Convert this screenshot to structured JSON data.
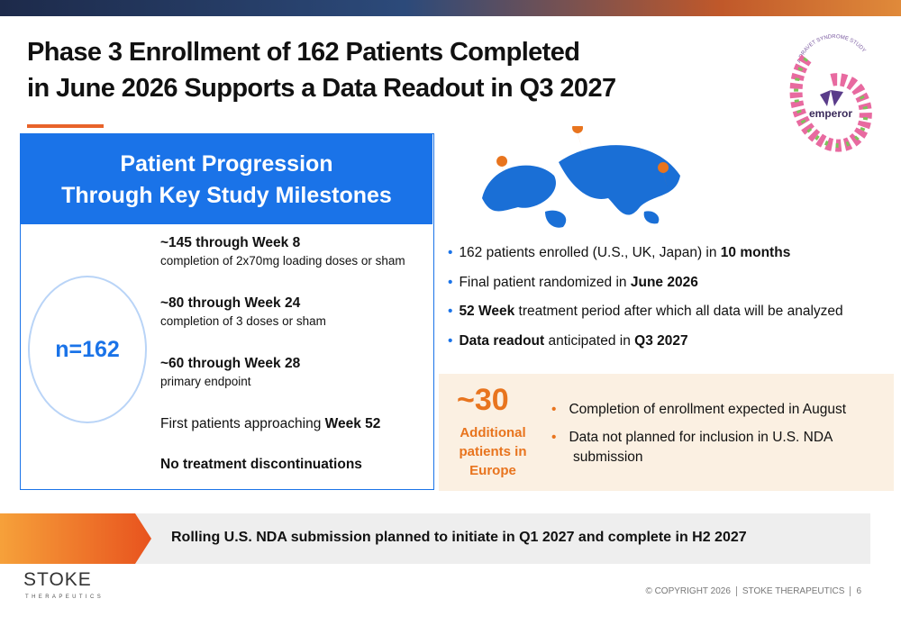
{
  "header": {
    "title_lines": [
      "Phase 3 Enrollment of 162 Patients Completed",
      "in June 2026 Supports a Data Readout in Q3 2027"
    ]
  },
  "badge": {
    "arc_text": "A DRAVET SYNDROME STUDY",
    "name": "emperor"
  },
  "progression": {
    "title_lines": [
      "Patient Progression",
      "Through Key Study Milestones"
    ],
    "total": "n=162",
    "milestones": [
      {
        "heading": [
          {
            "text": "~145 through Week 8",
            "bold": true
          }
        ],
        "detail": "completion of 2x70mg loading doses or sham"
      },
      {
        "heading": [
          {
            "text": "~80 through Week 24",
            "bold": true
          }
        ],
        "detail": "completion of 3 doses or sham"
      },
      {
        "heading": [
          {
            "text": "~60 through Week 28",
            "bold": true
          }
        ],
        "detail": "primary endpoint"
      },
      {
        "heading": [
          {
            "text": "First patients approaching ",
            "bold": false
          },
          {
            "text": "Week 52",
            "bold": true
          }
        ]
      },
      {
        "heading": [
          {
            "text": "No treatment discontinuations",
            "bold": true
          }
        ]
      }
    ]
  },
  "highlights": [
    [
      {
        "text": "162 patients enrolled (U.S., UK, Japan) in ",
        "bold": false
      },
      {
        "text": "10 months",
        "bold": true
      }
    ],
    [
      {
        "text": "Final patient randomized in ",
        "bold": false
      },
      {
        "text": "June 2026",
        "bold": true
      }
    ],
    [
      {
        "text": "52 Week",
        "bold": true
      },
      {
        "text": " treatment period after which all data will be analyzed",
        "bold": false
      }
    ],
    [
      {
        "text": "Data readout",
        "bold": true
      },
      {
        "text": " anticipated in ",
        "bold": false
      },
      {
        "text": "Q3 2027",
        "bold": true
      }
    ]
  ],
  "europe": {
    "count": "~30",
    "label_lines": [
      "Additional",
      "patients in",
      "Europe"
    ],
    "bullets": [
      "Completion of enrollment expected in August",
      "Data not planned for inclusion in U.S. NDA submission"
    ]
  },
  "banner": "Rolling U.S. NDA submission planned to initiate in Q1 2027 and complete in H2 2027",
  "logo": {
    "name": "STOKE",
    "tagline": "THERAPEUTICS"
  },
  "footer": {
    "copyright": "© COPYRIGHT 2026",
    "company": "STOKE THERAPEUTICS",
    "page": "6"
  }
}
